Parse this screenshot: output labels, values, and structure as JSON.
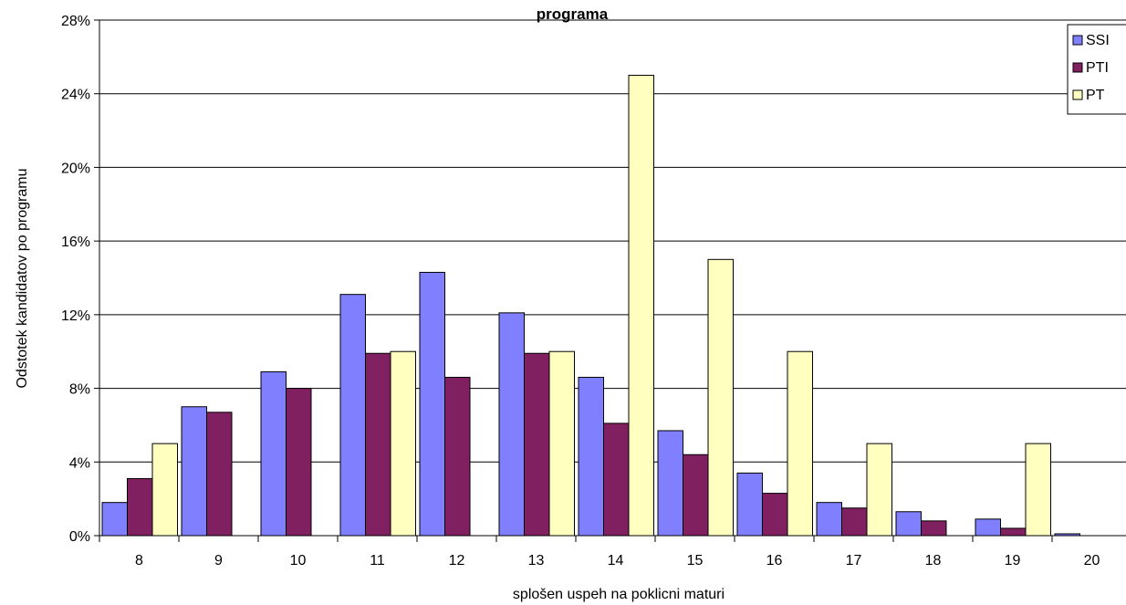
{
  "chart_data": {
    "type": "bar",
    "title": "programa",
    "xlabel": "splošen uspeh na poklicni maturi",
    "ylabel": "Odstotek kandidatov po programu",
    "categories": [
      "8",
      "9",
      "10",
      "11",
      "12",
      "13",
      "14",
      "15",
      "16",
      "17",
      "18",
      "19",
      "20"
    ],
    "ylim": [
      0,
      28
    ],
    "yticks": [
      0,
      4,
      8,
      12,
      16,
      20,
      24,
      28
    ],
    "ytick_labels": [
      "0%",
      "4%",
      "8%",
      "12%",
      "16%",
      "20%",
      "24%",
      "28%"
    ],
    "unit": "%",
    "grid": true,
    "legend_position": "top-right",
    "series": [
      {
        "name": "SSI",
        "color": "#8080ff",
        "values": [
          1.8,
          7.0,
          8.9,
          13.1,
          14.3,
          12.1,
          8.6,
          5.7,
          3.4,
          1.8,
          1.3,
          0.9,
          0.1
        ]
      },
      {
        "name": "PTI",
        "color": "#802060",
        "values": [
          3.1,
          6.7,
          8.0,
          9.9,
          8.6,
          9.9,
          6.1,
          4.4,
          2.3,
          1.5,
          0.8,
          0.4,
          null
        ]
      },
      {
        "name": "PT",
        "color": "#ffffc0",
        "values": [
          5.0,
          null,
          null,
          10.0,
          null,
          10.0,
          25.0,
          15.0,
          10.0,
          5.0,
          null,
          5.0,
          null
        ]
      }
    ]
  }
}
